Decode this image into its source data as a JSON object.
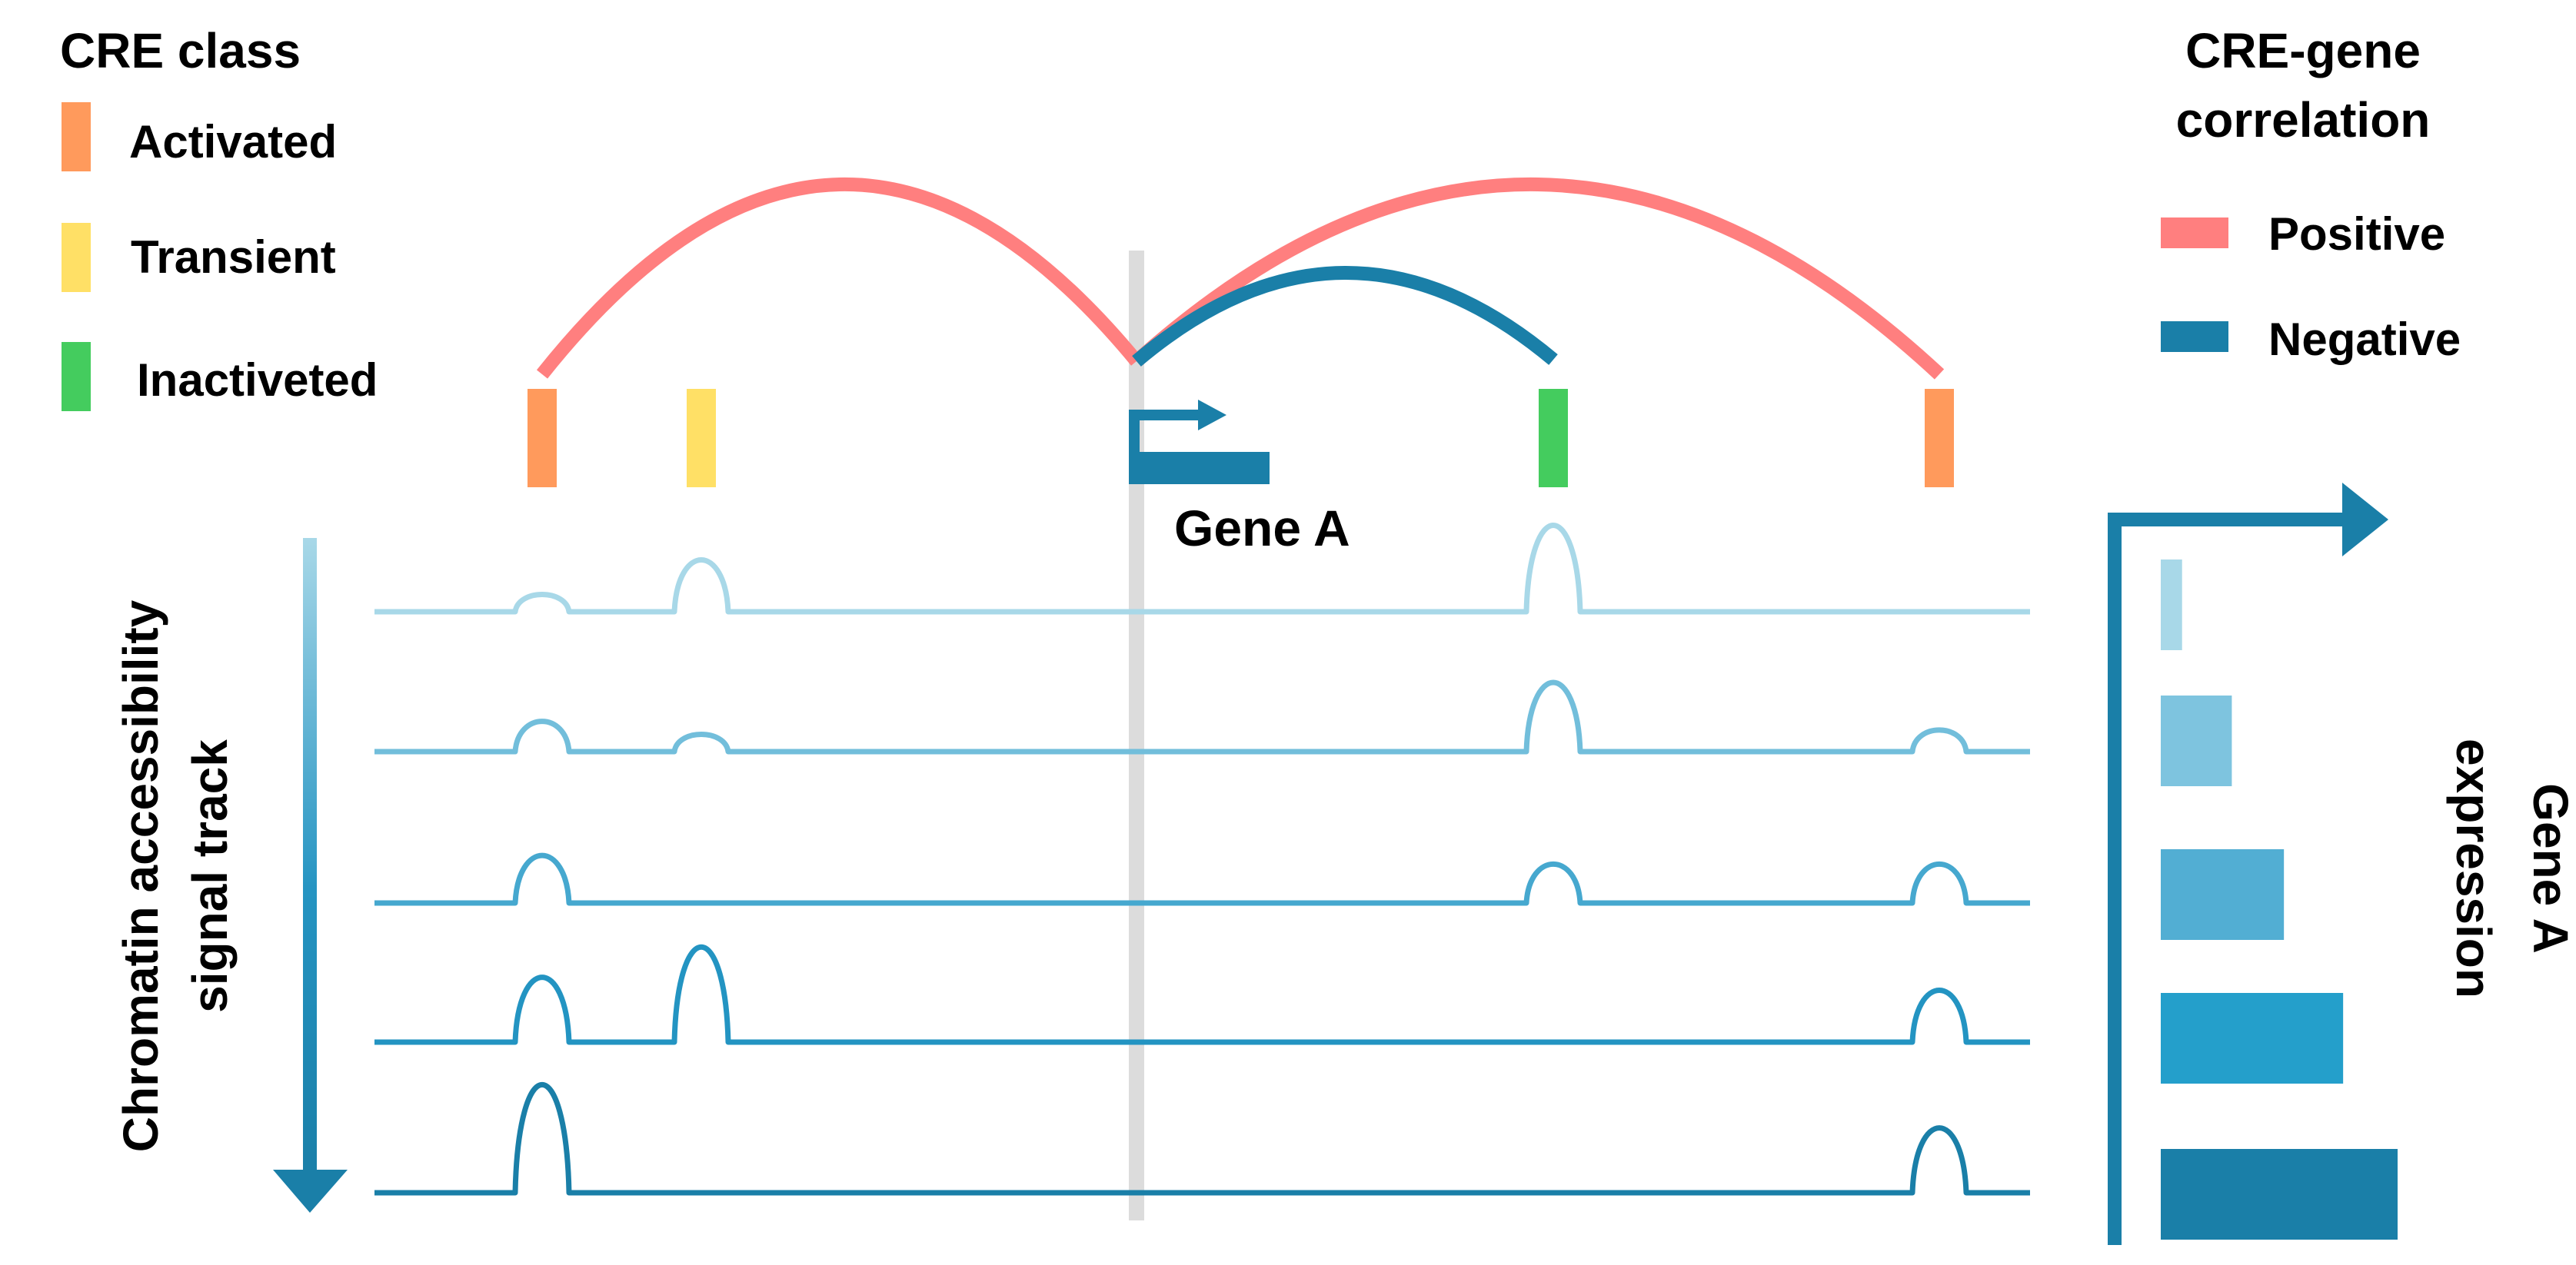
{
  "colors": {
    "activated": "#FF9A5C",
    "transient": "#FFE066",
    "inactivated": "#44CC5E",
    "positive": "#FF7F7F",
    "negative": "#1A7FA8",
    "gene": "#1A7FA8",
    "tss_line": "#DCDCDC",
    "track_colors": [
      "#A8D8E8",
      "#72BEDB",
      "#46A8CF",
      "#2394C2",
      "#1A7FA8"
    ],
    "bar_colors": [
      "#A8D8E8",
      "#7EC4DF",
      "#52AED3",
      "#249FCB",
      "#1A7FA8"
    ]
  },
  "cre_legend": {
    "title": "CRE class",
    "items": [
      {
        "label": "Activated",
        "color_key": "activated"
      },
      {
        "label": "Transient",
        "color_key": "transient"
      },
      {
        "label": "Inactiveted",
        "color_key": "inactivated"
      }
    ]
  },
  "correlation_legend": {
    "title_line1": "CRE-gene",
    "title_line2": "correlation",
    "items": [
      {
        "label": "Positive",
        "color_key": "positive"
      },
      {
        "label": "Negative",
        "color_key": "negative"
      }
    ]
  },
  "gene": {
    "label": "Gene A"
  },
  "cres": [
    {
      "class": "activated"
    },
    {
      "class": "transient"
    },
    {
      "class": "inactivated"
    },
    {
      "class": "activated"
    }
  ],
  "links": [
    {
      "from_cre": 0,
      "type": "positive"
    },
    {
      "from_cre": 3,
      "type": "positive"
    },
    {
      "from_cre": 2,
      "type": "negative"
    }
  ],
  "tracks": [
    {
      "peaks": [
        0.2,
        0.6,
        0.0,
        1.0,
        0.0
      ]
    },
    {
      "peaks": [
        0.35,
        0.2,
        0.0,
        0.8,
        0.25
      ]
    },
    {
      "peaks": [
        0.55,
        0.0,
        0.0,
        0.45,
        0.45
      ]
    },
    {
      "peaks": [
        0.75,
        1.1,
        0.0,
        0.0,
        0.6
      ]
    },
    {
      "peaks": [
        1.25,
        0.0,
        0.0,
        0.0,
        0.75
      ]
    }
  ],
  "left_axis": {
    "label_line1": "Chromatin accessibility",
    "label_line2": "signal track"
  },
  "right_axis": {
    "label_line1": "Gene A",
    "label_line2": "expression"
  },
  "expression": {
    "values": [
      0.09,
      0.3,
      0.52,
      0.77,
      1.0
    ]
  }
}
